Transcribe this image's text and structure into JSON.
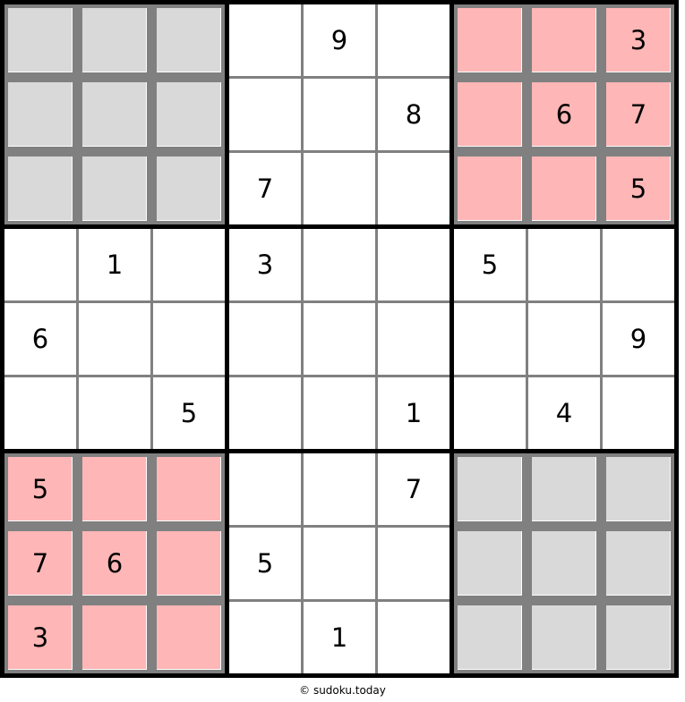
{
  "grid": [
    [
      null,
      null,
      null,
      null,
      9,
      null,
      null,
      null,
      3
    ],
    [
      null,
      null,
      null,
      null,
      null,
      8,
      null,
      6,
      7
    ],
    [
      null,
      null,
      null,
      7,
      null,
      null,
      null,
      null,
      5
    ],
    [
      null,
      1,
      null,
      3,
      null,
      null,
      5,
      null,
      null
    ],
    [
      6,
      null,
      null,
      null,
      null,
      null,
      null,
      null,
      9
    ],
    [
      null,
      null,
      5,
      null,
      null,
      1,
      null,
      4,
      null
    ],
    [
      5,
      null,
      null,
      null,
      null,
      7,
      null,
      null,
      null
    ],
    [
      7,
      6,
      null,
      5,
      null,
      null,
      null,
      null,
      null
    ],
    [
      3,
      null,
      null,
      null,
      1,
      null,
      null,
      null,
      null
    ]
  ],
  "box_highlights": [
    "gray",
    "none",
    "pink",
    "none",
    "none",
    "none",
    "pink",
    "none",
    "gray"
  ],
  "colors": {
    "gray": "#d9d9d9",
    "pink": "#ffb6b6",
    "grid_line": "#808080",
    "box_border": "#000000"
  },
  "footer": {
    "copyright": "© sudoku.today"
  }
}
